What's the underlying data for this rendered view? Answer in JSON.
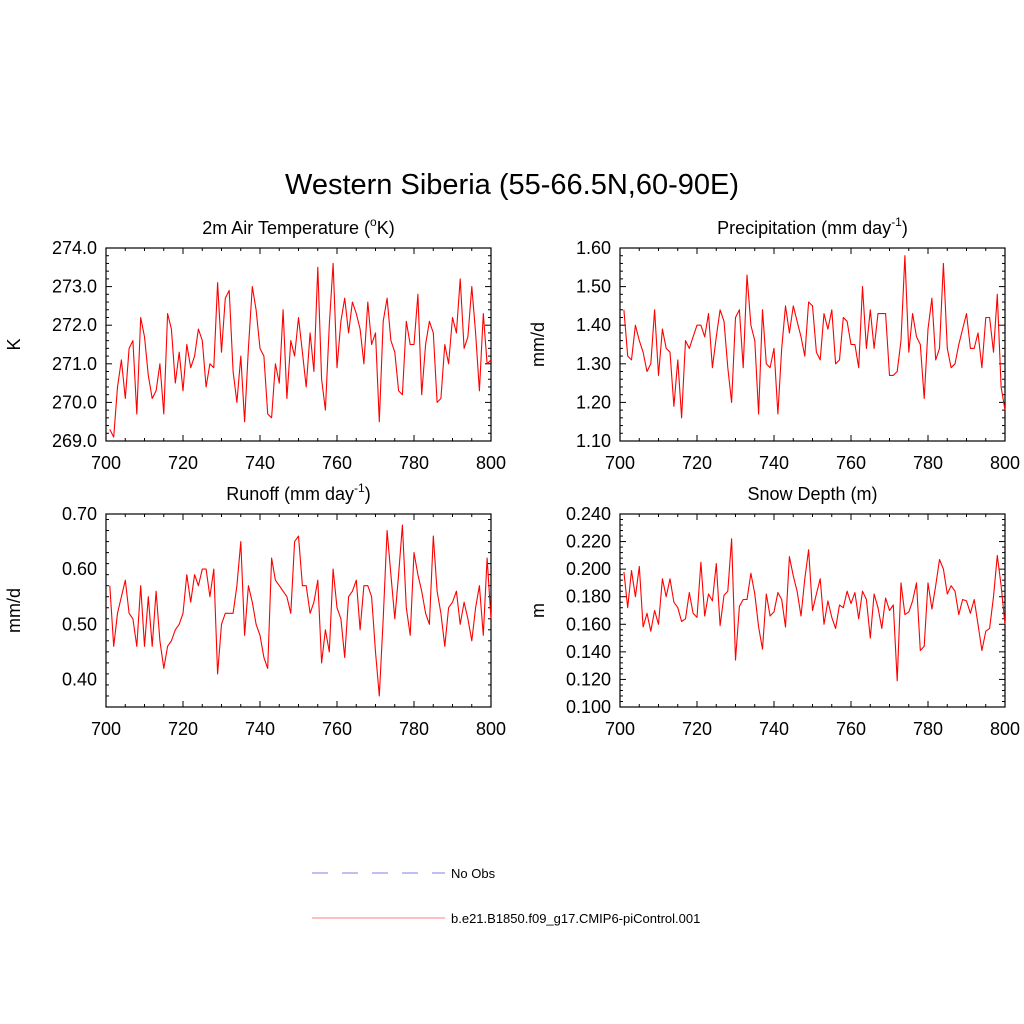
{
  "figure": {
    "title": "Western Siberia (55-66.5N,60-90E)"
  },
  "legend": {
    "placement": "bottom-center",
    "items": [
      {
        "label": "No Obs",
        "color": "#9999ee",
        "style": "dashed"
      },
      {
        "label": "b.e21.B1850.f09_g17.CMIP6-piControl.001",
        "color": "#ff9999",
        "style": "solid"
      }
    ]
  },
  "chart_data": [
    {
      "type": "line",
      "title": "2m Air Temperature (",
      "title_sup": "o",
      "title_tail": "K)",
      "ylabel": "K",
      "xlim": [
        700,
        800
      ],
      "ylim": [
        269.0,
        274.0
      ],
      "xticks": [
        "700",
        "720",
        "740",
        "760",
        "780",
        "800"
      ],
      "yticks": [
        "269.0",
        "270.0",
        "271.0",
        "272.0",
        "273.0",
        "274.0"
      ],
      "ytick_values": [
        269.0,
        270.0,
        271.0,
        272.0,
        273.0,
        274.0
      ],
      "series": [
        {
          "color": "#ff0000",
          "x": [
            701,
            702,
            703,
            704,
            705,
            706,
            707,
            708,
            709,
            710,
            711,
            712,
            713,
            714,
            715,
            716,
            717,
            718,
            719,
            720,
            721,
            722,
            723,
            724,
            725,
            726,
            727,
            728,
            729,
            730,
            731,
            732,
            733,
            734,
            735,
            736,
            737,
            738,
            739,
            740,
            741,
            742,
            743,
            744,
            745,
            746,
            747,
            748,
            749,
            750,
            751,
            752,
            753,
            754,
            755,
            756,
            757,
            758,
            759,
            760,
            761,
            762,
            763,
            764,
            765,
            766,
            767,
            768,
            769,
            770,
            771,
            772,
            773,
            774,
            775,
            776,
            777,
            778,
            779,
            780,
            781,
            782,
            783,
            784,
            785,
            786,
            787,
            788,
            789,
            790,
            791,
            792,
            793,
            794,
            795,
            796,
            797,
            798,
            799,
            800
          ],
          "values": [
            269.3,
            269.1,
            270.4,
            271.1,
            270.1,
            271.4,
            271.6,
            269.7,
            272.2,
            271.7,
            270.7,
            270.1,
            270.3,
            271.0,
            269.7,
            272.3,
            271.9,
            270.5,
            271.3,
            270.3,
            271.5,
            270.9,
            271.2,
            271.9,
            271.6,
            270.4,
            271.0,
            270.9,
            273.1,
            271.3,
            272.7,
            272.9,
            270.8,
            270.0,
            271.2,
            269.5,
            271.4,
            273.0,
            272.4,
            271.4,
            271.2,
            269.7,
            269.6,
            271.0,
            270.5,
            272.4,
            270.1,
            271.6,
            271.2,
            272.2,
            271.3,
            270.4,
            271.8,
            270.8,
            273.5,
            270.6,
            269.8,
            272.0,
            273.6,
            270.9,
            272.1,
            272.7,
            271.8,
            272.6,
            272.3,
            271.9,
            271.0,
            272.6,
            271.5,
            271.8,
            269.5,
            272.1,
            272.7,
            271.6,
            271.3,
            270.3,
            270.2,
            272.1,
            271.5,
            271.5,
            272.8,
            270.2,
            271.5,
            272.1,
            271.8,
            270.0,
            270.1,
            271.5,
            271.0,
            272.2,
            271.8,
            273.2,
            271.4,
            271.7,
            273.0,
            271.8,
            270.3,
            272.3,
            271.0,
            271.1
          ]
        }
      ]
    },
    {
      "type": "line",
      "title": "Precipitation (mm day",
      "title_sup": "-1",
      "title_tail": ")",
      "ylabel": "mm/d",
      "xlim": [
        700,
        800
      ],
      "ylim": [
        1.1,
        1.6
      ],
      "xticks": [
        "700",
        "720",
        "740",
        "760",
        "780",
        "800"
      ],
      "yticks": [
        "1.10",
        "1.20",
        "1.30",
        "1.40",
        "1.50",
        "1.60"
      ],
      "ytick_values": [
        1.1,
        1.2,
        1.3,
        1.4,
        1.5,
        1.6
      ],
      "series": [
        {
          "color": "#ff0000",
          "x": [
            701,
            702,
            703,
            704,
            705,
            706,
            707,
            708,
            709,
            710,
            711,
            712,
            713,
            714,
            715,
            716,
            717,
            718,
            719,
            720,
            721,
            722,
            723,
            724,
            725,
            726,
            727,
            728,
            729,
            730,
            731,
            732,
            733,
            734,
            735,
            736,
            737,
            738,
            739,
            740,
            741,
            742,
            743,
            744,
            745,
            746,
            747,
            748,
            749,
            750,
            751,
            752,
            753,
            754,
            755,
            756,
            757,
            758,
            759,
            760,
            761,
            762,
            763,
            764,
            765,
            766,
            767,
            768,
            769,
            770,
            771,
            772,
            773,
            774,
            775,
            776,
            777,
            778,
            779,
            780,
            781,
            782,
            783,
            784,
            785,
            786,
            787,
            788,
            789,
            790,
            791,
            792,
            793,
            794,
            795,
            796,
            797,
            798,
            799,
            800
          ],
          "values": [
            1.44,
            1.32,
            1.31,
            1.4,
            1.36,
            1.33,
            1.28,
            1.3,
            1.44,
            1.27,
            1.39,
            1.34,
            1.33,
            1.19,
            1.31,
            1.16,
            1.36,
            1.34,
            1.37,
            1.4,
            1.4,
            1.37,
            1.43,
            1.29,
            1.37,
            1.44,
            1.41,
            1.29,
            1.2,
            1.42,
            1.44,
            1.29,
            1.53,
            1.4,
            1.36,
            1.17,
            1.44,
            1.3,
            1.29,
            1.34,
            1.17,
            1.34,
            1.45,
            1.38,
            1.45,
            1.41,
            1.37,
            1.32,
            1.46,
            1.45,
            1.33,
            1.31,
            1.43,
            1.39,
            1.44,
            1.3,
            1.31,
            1.42,
            1.41,
            1.35,
            1.35,
            1.29,
            1.5,
            1.34,
            1.44,
            1.34,
            1.43,
            1.43,
            1.43,
            1.27,
            1.27,
            1.28,
            1.36,
            1.58,
            1.33,
            1.43,
            1.37,
            1.35,
            1.21,
            1.39,
            1.47,
            1.31,
            1.34,
            1.56,
            1.34,
            1.29,
            1.3,
            1.35,
            1.39,
            1.43,
            1.34,
            1.34,
            1.38,
            1.29,
            1.42,
            1.42,
            1.33,
            1.48,
            1.24,
            1.18
          ]
        }
      ]
    },
    {
      "type": "line",
      "title": "Runoff (mm day",
      "title_sup": "-1",
      "title_tail": ")",
      "ylabel": "mm/d",
      "xlim": [
        700,
        800
      ],
      "ylim": [
        0.35,
        0.7
      ],
      "xticks": [
        "700",
        "720",
        "740",
        "760",
        "780",
        "800"
      ],
      "yticks": [
        "0.40",
        "0.50",
        "0.60",
        "0.70"
      ],
      "ytick_values": [
        0.4,
        0.5,
        0.6,
        0.7
      ],
      "series": [
        {
          "color": "#ff0000",
          "x": [
            701,
            702,
            703,
            704,
            705,
            706,
            707,
            708,
            709,
            710,
            711,
            712,
            713,
            714,
            715,
            716,
            717,
            718,
            719,
            720,
            721,
            722,
            723,
            724,
            725,
            726,
            727,
            728,
            729,
            730,
            731,
            732,
            733,
            734,
            735,
            736,
            737,
            738,
            739,
            740,
            741,
            742,
            743,
            744,
            745,
            746,
            747,
            748,
            749,
            750,
            751,
            752,
            753,
            754,
            755,
            756,
            757,
            758,
            759,
            760,
            761,
            762,
            763,
            764,
            765,
            766,
            767,
            768,
            769,
            770,
            771,
            772,
            773,
            774,
            775,
            776,
            777,
            778,
            779,
            780,
            781,
            782,
            783,
            784,
            785,
            786,
            787,
            788,
            789,
            790,
            791,
            792,
            793,
            794,
            795,
            796,
            797,
            798,
            799,
            800
          ],
          "values": [
            0.57,
            0.46,
            0.52,
            0.55,
            0.58,
            0.52,
            0.51,
            0.46,
            0.57,
            0.46,
            0.55,
            0.46,
            0.56,
            0.47,
            0.42,
            0.46,
            0.47,
            0.49,
            0.5,
            0.52,
            0.59,
            0.54,
            0.59,
            0.57,
            0.6,
            0.6,
            0.55,
            0.6,
            0.41,
            0.5,
            0.52,
            0.52,
            0.52,
            0.57,
            0.65,
            0.48,
            0.57,
            0.54,
            0.5,
            0.48,
            0.44,
            0.42,
            0.62,
            0.58,
            0.57,
            0.56,
            0.55,
            0.52,
            0.65,
            0.66,
            0.57,
            0.57,
            0.52,
            0.54,
            0.58,
            0.43,
            0.49,
            0.45,
            0.6,
            0.53,
            0.51,
            0.44,
            0.55,
            0.56,
            0.58,
            0.49,
            0.57,
            0.57,
            0.55,
            0.45,
            0.37,
            0.51,
            0.67,
            0.59,
            0.51,
            0.59,
            0.68,
            0.53,
            0.48,
            0.63,
            0.59,
            0.56,
            0.52,
            0.5,
            0.66,
            0.56,
            0.52,
            0.46,
            0.53,
            0.54,
            0.56,
            0.5,
            0.54,
            0.51,
            0.47,
            0.53,
            0.57,
            0.48,
            0.62,
            0.51
          ]
        }
      ]
    },
    {
      "type": "line",
      "title": "Snow Depth (m)",
      "title_sup": "",
      "title_tail": "",
      "ylabel": "m",
      "xlim": [
        700,
        800
      ],
      "ylim": [
        0.1,
        0.24
      ],
      "xticks": [
        "700",
        "720",
        "740",
        "760",
        "780",
        "800"
      ],
      "yticks": [
        "0.100",
        "0.120",
        "0.140",
        "0.160",
        "0.180",
        "0.200",
        "0.220",
        "0.240"
      ],
      "ytick_values": [
        0.1,
        0.12,
        0.14,
        0.16,
        0.18,
        0.2,
        0.22,
        0.24
      ],
      "series": [
        {
          "color": "#ff0000",
          "x": [
            701,
            702,
            703,
            704,
            705,
            706,
            707,
            708,
            709,
            710,
            711,
            712,
            713,
            714,
            715,
            716,
            717,
            718,
            719,
            720,
            721,
            722,
            723,
            724,
            725,
            726,
            727,
            728,
            729,
            730,
            731,
            732,
            733,
            734,
            735,
            736,
            737,
            738,
            739,
            740,
            741,
            742,
            743,
            744,
            745,
            746,
            747,
            748,
            749,
            750,
            751,
            752,
            753,
            754,
            755,
            756,
            757,
            758,
            759,
            760,
            761,
            762,
            763,
            764,
            765,
            766,
            767,
            768,
            769,
            770,
            771,
            772,
            773,
            774,
            775,
            776,
            777,
            778,
            779,
            780,
            781,
            782,
            783,
            784,
            785,
            786,
            787,
            788,
            789,
            790,
            791,
            792,
            793,
            794,
            795,
            796,
            797,
            798,
            799,
            800
          ],
          "values": [
            0.198,
            0.172,
            0.199,
            0.18,
            0.202,
            0.158,
            0.168,
            0.155,
            0.17,
            0.16,
            0.193,
            0.18,
            0.193,
            0.176,
            0.172,
            0.162,
            0.164,
            0.183,
            0.168,
            0.165,
            0.205,
            0.166,
            0.182,
            0.177,
            0.204,
            0.159,
            0.181,
            0.184,
            0.222,
            0.134,
            0.173,
            0.178,
            0.178,
            0.197,
            0.182,
            0.158,
            0.142,
            0.182,
            0.166,
            0.169,
            0.183,
            0.178,
            0.158,
            0.209,
            0.195,
            0.184,
            0.166,
            0.193,
            0.214,
            0.17,
            0.182,
            0.193,
            0.16,
            0.177,
            0.165,
            0.157,
            0.174,
            0.172,
            0.184,
            0.175,
            0.183,
            0.164,
            0.184,
            0.178,
            0.15,
            0.182,
            0.172,
            0.157,
            0.179,
            0.17,
            0.174,
            0.119,
            0.19,
            0.167,
            0.169,
            0.177,
            0.19,
            0.141,
            0.144,
            0.19,
            0.171,
            0.188,
            0.207,
            0.2,
            0.182,
            0.188,
            0.184,
            0.167,
            0.178,
            0.177,
            0.168,
            0.178,
            0.16,
            0.141,
            0.155,
            0.157,
            0.18,
            0.21,
            0.188,
            0.16
          ]
        }
      ]
    }
  ]
}
